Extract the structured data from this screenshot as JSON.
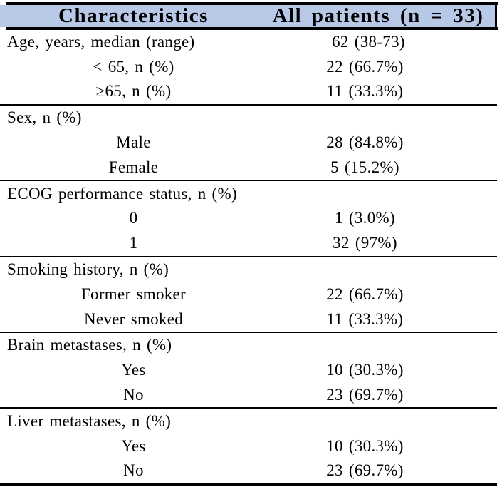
{
  "table": {
    "columns": [
      "Characteristics",
      "All patients (n = 33)"
    ],
    "colors": {
      "header_bg": "#b7c9e6",
      "border": "#000000",
      "text": "#000000"
    },
    "sections": [
      {
        "header": "Age, years, median (range)",
        "header_value": "62 (38-73)",
        "rows": [
          {
            "label": "< 65, n (%)",
            "value": "22 (66.7%)"
          },
          {
            "label": "≥65, n (%)",
            "value": "11 (33.3%)"
          }
        ]
      },
      {
        "header": "Sex, n (%)",
        "header_value": "",
        "rows": [
          {
            "label": "Male",
            "value": "28 (84.8%)"
          },
          {
            "label": "Female",
            "value": "5 (15.2%)"
          }
        ]
      },
      {
        "header": "ECOG performance status, n (%)",
        "header_value": "",
        "rows": [
          {
            "label": "0",
            "value": "1 (3.0%)"
          },
          {
            "label": "1",
            "value": "32 (97%)"
          }
        ]
      },
      {
        "header": "Smoking history, n (%)",
        "header_value": "",
        "rows": [
          {
            "label": "Former smoker",
            "value": "22 (66.7%)"
          },
          {
            "label": "Never smoked",
            "value": "11 (33.3%)"
          }
        ]
      },
      {
        "header": "Brain metastases, n (%)",
        "header_value": "",
        "rows": [
          {
            "label": "Yes",
            "value": "10 (30.3%)"
          },
          {
            "label": "No",
            "value": "23 (69.7%)"
          }
        ]
      },
      {
        "header": "Liver metastases, n (%)",
        "header_value": "",
        "rows": [
          {
            "label": "Yes",
            "value": "10 (30.3%)"
          },
          {
            "label": "No",
            "value": "23 (69.7%)"
          }
        ]
      }
    ]
  }
}
